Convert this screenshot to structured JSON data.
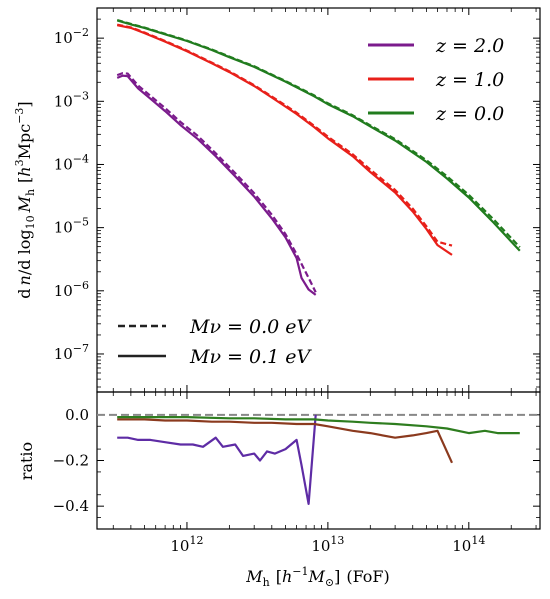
{
  "chart_data": [
    {
      "type": "line",
      "panel": "main",
      "ylabel": "d n/d log10 Mh [h^3Mpc^-3]",
      "xscale": "log",
      "yscale": "log",
      "xlim": [
        230000000000.0,
        320000000000000.0
      ],
      "ylim": [
        2.5e-08,
        0.03
      ],
      "yticks": [
        1e-07,
        1e-06,
        1e-05,
        0.0001,
        0.001,
        0.01
      ],
      "ytick_labels": [
        {
          "base": "10",
          "exp": "−7"
        },
        {
          "base": "10",
          "exp": "−6"
        },
        {
          "base": "10",
          "exp": "−5"
        },
        {
          "base": "10",
          "exp": "−4"
        },
        {
          "base": "10",
          "exp": "−3"
        },
        {
          "base": "10",
          "exp": "−2"
        }
      ],
      "legend_series": [
        {
          "label": "z = 2.0",
          "color": "#7b1b8c"
        },
        {
          "label": "z = 1.0",
          "color": "#e8201a"
        },
        {
          "label": "z = 0.0",
          "color": "#217c1e"
        }
      ],
      "legend_styles": [
        {
          "label": "Mν = 0.0 eV",
          "style": "dashed"
        },
        {
          "label": "Mν = 0.1 eV",
          "style": "solid"
        }
      ],
      "series": [
        {
          "name": "z = 2.0",
          "mnu": "0.1 eV",
          "style": "solid",
          "color": "#7b1b8c",
          "x": [
            320000000000.0,
            350000000000.0,
            380000000000.0,
            450000000000.0,
            550000000000.0,
            700000000000.0,
            900000000000.0,
            1200000000000.0,
            1600000000000.0,
            2200000000000.0,
            3000000000000.0,
            4000000000000.0,
            5000000000000.0,
            6000000000000.0,
            6500000000000.0,
            7300000000000.0,
            8200000000000.0
          ],
          "y": [
            0.00235,
            0.00255,
            0.0025,
            0.0016,
            0.0011,
            0.0007,
            0.00042,
            0.00025,
            0.000135,
            6.5e-05,
            3.1e-05,
            1.4e-05,
            7e-06,
            3.3e-06,
            1.6e-06,
            1.05e-06,
            8.6e-07
          ]
        },
        {
          "name": "z = 2.0",
          "mnu": "0.0 eV",
          "style": "dashed",
          "color": "#7b1b8c",
          "x": [
            320000000000.0,
            350000000000.0,
            380000000000.0,
            450000000000.0,
            550000000000.0,
            700000000000.0,
            900000000000.0,
            1200000000000.0,
            1600000000000.0,
            2200000000000.0,
            3000000000000.0,
            4000000000000.0,
            5000000000000.0,
            6000000000000.0,
            7300000000000.0,
            8200000000000.0
          ],
          "y": [
            0.0026,
            0.0028,
            0.00275,
            0.00178,
            0.00122,
            0.00078,
            0.00047,
            0.00028,
            0.00015,
            7.3e-05,
            3.5e-05,
            1.6e-05,
            7.9e-06,
            3.8e-06,
            1.6e-06,
            9.5e-07
          ]
        },
        {
          "name": "z = 1.0",
          "mnu": "0.1 eV",
          "style": "solid",
          "color": "#e8201a",
          "x": [
            320000000000.0,
            400000000000.0,
            500000000000.0,
            700000000000.0,
            1000000000000.0,
            1500000000000.0,
            2000000000000.0,
            3000000000000.0,
            4000000000000.0,
            6000000000000.0,
            8000000000000.0,
            10000000000000.0,
            15000000000000.0,
            20000000000000.0,
            30000000000000.0,
            40000000000000.0,
            50000000000000.0,
            60000000000000.0,
            76000000000000.0
          ],
          "y": [
            0.016,
            0.0145,
            0.012,
            0.0088,
            0.0062,
            0.004,
            0.0029,
            0.00175,
            0.00115,
            0.00063,
            0.00039,
            0.00026,
            0.000135,
            7.6e-05,
            3.6e-05,
            1.8e-05,
            9.5e-06,
            5.3e-06,
            3.7e-06
          ]
        },
        {
          "name": "z = 1.0",
          "mnu": "0.0 eV",
          "style": "dashed",
          "color": "#e8201a",
          "x": [
            320000000000.0,
            400000000000.0,
            500000000000.0,
            700000000000.0,
            1000000000000.0,
            1500000000000.0,
            2000000000000.0,
            3000000000000.0,
            4000000000000.0,
            6000000000000.0,
            8000000000000.0,
            10000000000000.0,
            15000000000000.0,
            20000000000000.0,
            30000000000000.0,
            40000000000000.0,
            50000000000000.0,
            60000000000000.0,
            76000000000000.0
          ],
          "y": [
            0.0163,
            0.0148,
            0.0123,
            0.009,
            0.00635,
            0.0041,
            0.00298,
            0.0018,
            0.00119,
            0.00066,
            0.00041,
            0.000275,
            0.000145,
            8.3e-05,
            3.95e-05,
            2e-05,
            1.05e-05,
            6e-06,
            5.2e-06
          ]
        },
        {
          "name": "z = 0.0",
          "mnu": "0.1 eV",
          "style": "solid",
          "color": "#217c1e",
          "x": [
            320000000000.0,
            400000000000.0,
            500000000000.0,
            700000000000.0,
            1000000000000.0,
            1500000000000.0,
            2000000000000.0,
            3000000000000.0,
            5000000000000.0,
            8000000000000.0,
            10000000000000.0,
            15000000000000.0,
            20000000000000.0,
            30000000000000.0,
            50000000000000.0,
            70000000000000.0,
            100000000000000.0,
            150000000000000.0,
            230000000000000.0
          ],
          "y": [
            0.019,
            0.0165,
            0.0145,
            0.0115,
            0.009,
            0.0065,
            0.005,
            0.0035,
            0.00205,
            0.0012,
            0.0009,
            0.00058,
            0.0004,
            0.00024,
            0.00011,
            6e-05,
            3e-05,
            1.2e-05,
            4.3e-06
          ]
        },
        {
          "name": "z = 0.0",
          "mnu": "0.0 eV",
          "style": "dashed",
          "color": "#217c1e",
          "x": [
            320000000000.0,
            400000000000.0,
            500000000000.0,
            700000000000.0,
            1000000000000.0,
            1500000000000.0,
            2000000000000.0,
            3000000000000.0,
            5000000000000.0,
            8000000000000.0,
            10000000000000.0,
            15000000000000.0,
            20000000000000.0,
            30000000000000.0,
            50000000000000.0,
            70000000000000.0,
            100000000000000.0,
            150000000000000.0,
            230000000000000.0
          ],
          "y": [
            0.0193,
            0.0168,
            0.0147,
            0.0117,
            0.00915,
            0.00662,
            0.0051,
            0.00358,
            0.0021,
            0.00124,
            0.00093,
            0.0006,
            0.000415,
            0.000252,
            0.000117,
            6.5e-05,
            3.3e-05,
            1.35e-05,
            4.9e-06
          ]
        }
      ]
    },
    {
      "type": "line",
      "panel": "ratio",
      "xlabel": "Mh [h^-1M⊙] (FoF)",
      "ylabel": "ratio",
      "xscale": "log",
      "xlim": [
        230000000000.0,
        320000000000000.0
      ],
      "ylim": [
        -0.5,
        0.1
      ],
      "yticks": [
        -0.4,
        -0.2,
        0.0
      ],
      "ytick_labels": [
        "−0.4",
        "−0.2",
        "0.0"
      ],
      "xticks": [
        1000000000000.0,
        10000000000000.0,
        100000000000000.0
      ],
      "xtick_labels": [
        {
          "base": "10",
          "exp": "12"
        },
        {
          "base": "10",
          "exp": "13"
        },
        {
          "base": "10",
          "exp": "14"
        }
      ],
      "reference_line": {
        "y": 0.0,
        "style": "dashed",
        "color": "#888888"
      },
      "series": [
        {
          "name": "z = 2.0",
          "color": "#5e2ca5",
          "x": [
            320000000000.0,
            380000000000.0,
            450000000000.0,
            550000000000.0,
            700000000000.0,
            900000000000.0,
            1100000000000.0,
            1300000000000.0,
            1600000000000.0,
            1800000000000.0,
            2200000000000.0,
            2500000000000.0,
            3000000000000.0,
            3300000000000.0,
            3700000000000.0,
            4200000000000.0,
            5000000000000.0,
            6000000000000.0,
            6500000000000.0,
            7300000000000.0,
            8200000000000.0
          ],
          "y": [
            -0.1,
            -0.1,
            -0.11,
            -0.11,
            -0.12,
            -0.13,
            -0.13,
            -0.14,
            -0.1,
            -0.14,
            -0.13,
            -0.18,
            -0.17,
            -0.2,
            -0.16,
            -0.17,
            -0.15,
            -0.11,
            -0.22,
            -0.39,
            0.0
          ]
        },
        {
          "name": "z = 1.0",
          "color": "#8b3a1e",
          "x": [
            320000000000.0,
            500000000000.0,
            700000000000.0,
            1000000000000.0,
            1500000000000.0,
            2000000000000.0,
            3000000000000.0,
            4000000000000.0,
            6000000000000.0,
            8000000000000.0,
            10000000000000.0,
            15000000000000.0,
            20000000000000.0,
            30000000000000.0,
            40000000000000.0,
            50000000000000.0,
            60000000000000.0,
            76000000000000.0
          ],
          "y": [
            -0.02,
            -0.02,
            -0.025,
            -0.025,
            -0.03,
            -0.03,
            -0.035,
            -0.035,
            -0.04,
            -0.04,
            -0.05,
            -0.07,
            -0.08,
            -0.1,
            -0.09,
            -0.08,
            -0.07,
            -0.21
          ]
        },
        {
          "name": "z = 0.0",
          "color": "#2e7d1f",
          "x": [
            320000000000.0,
            500000000000.0,
            1000000000000.0,
            2000000000000.0,
            3000000000000.0,
            5000000000000.0,
            8000000000000.0,
            10000000000000.0,
            15000000000000.0,
            20000000000000.0,
            30000000000000.0,
            50000000000000.0,
            70000000000000.0,
            100000000000000.0,
            130000000000000.0,
            160000000000000.0,
            230000000000000.0
          ],
          "y": [
            -0.01,
            -0.01,
            -0.01,
            -0.015,
            -0.015,
            -0.02,
            -0.02,
            -0.025,
            -0.03,
            -0.035,
            -0.04,
            -0.05,
            -0.06,
            -0.08,
            -0.07,
            -0.08,
            -0.08
          ]
        }
      ]
    }
  ]
}
